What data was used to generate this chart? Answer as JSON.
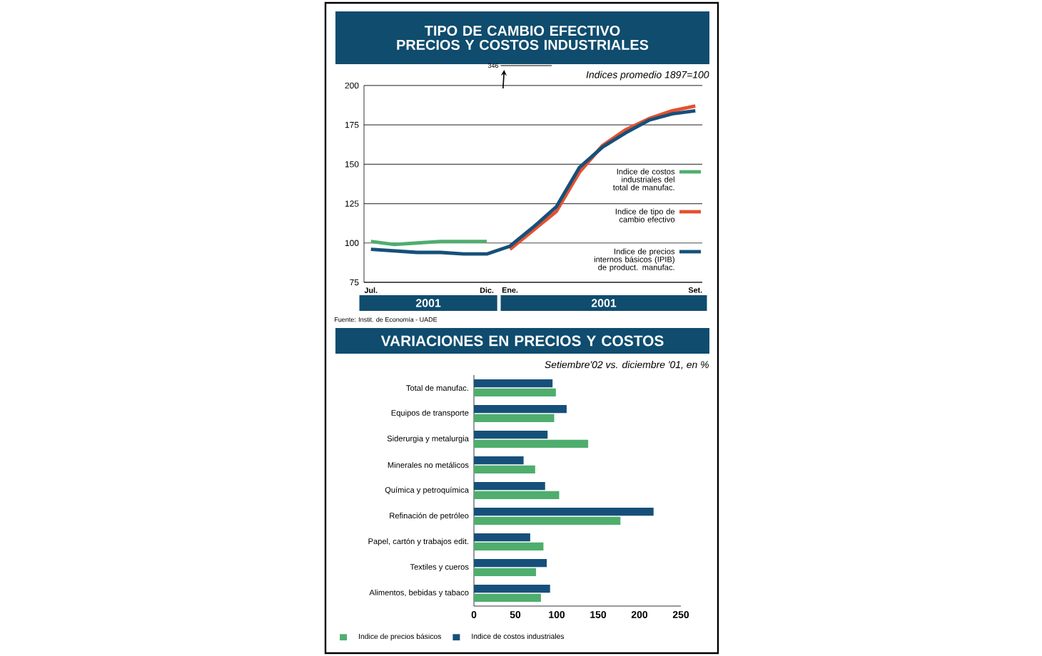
{
  "chart_data": [
    {
      "type": "line",
      "title": "TIPO DE CAMBIO EFECTIVO PRECIOS Y COSTOS INDUSTRIALES",
      "subtitle": "Indices promedio 1897=100",
      "categories": [
        "Jul.",
        null,
        null,
        null,
        null,
        "Dic.",
        "Ene.",
        null,
        null,
        null,
        null,
        null,
        null,
        null,
        "Set."
      ],
      "series": [
        {
          "name": "Indice de costos industriales del total de manufac.",
          "color": "#4fae6e",
          "values": [
            101,
            99,
            100,
            101,
            101,
            101,
            null,
            null,
            null,
            null,
            null,
            null,
            null,
            null,
            null
          ]
        },
        {
          "name": "Indice de tipo de cambio efectivo",
          "color": "#e5502e",
          "values": [
            null,
            null,
            null,
            null,
            null,
            null,
            96,
            108,
            120,
            145,
            162,
            172,
            179,
            184,
            187
          ]
        },
        {
          "name": "Indice de precios internos básicos (IPIB) de product. manufac.",
          "color": "#16507a",
          "values": [
            96,
            95,
            94,
            94,
            93,
            93,
            98,
            110,
            123,
            148,
            161,
            170,
            178,
            182,
            184
          ]
        }
      ],
      "ylim": [
        75,
        200
      ],
      "yticks": [
        75,
        100,
        125,
        150,
        175,
        200
      ],
      "grid": "y",
      "legend": "right",
      "annotations": [
        "346",
        "2001",
        "2001",
        "Fuente: Instit. de Economía - UADE"
      ]
    },
    {
      "type": "bar",
      "orientation": "horizontal",
      "title": "VARIACIONES EN PRECIOS Y COSTOS",
      "subtitle": "Setiembre'02 vs. diciembre '01, en %",
      "categories": [
        "Total de manufac.",
        "Equipos de transporte",
        "Siderurgia y metalurgia",
        "Minerales no metálicos",
        "Química y petroquímica",
        "Refinación de petróleo",
        "Papel, cartón y trabajos edit.",
        "Textiles y cueros",
        "Alimentos, bebidas y tabaco"
      ],
      "series": [
        {
          "name": "Indice de precios básicos",
          "color": "#4fae6e",
          "values": [
            99,
            97,
            138,
            74,
            103,
            177,
            84,
            75,
            81
          ]
        },
        {
          "name": "Indice de costos industriales",
          "color": "#16507a",
          "values": [
            95,
            112,
            89,
            60,
            86,
            217,
            68,
            88,
            92
          ]
        }
      ],
      "xlim": [
        0,
        250
      ],
      "xticks": [
        0,
        50,
        100,
        150,
        200,
        250
      ],
      "legend": "bottom"
    }
  ]
}
